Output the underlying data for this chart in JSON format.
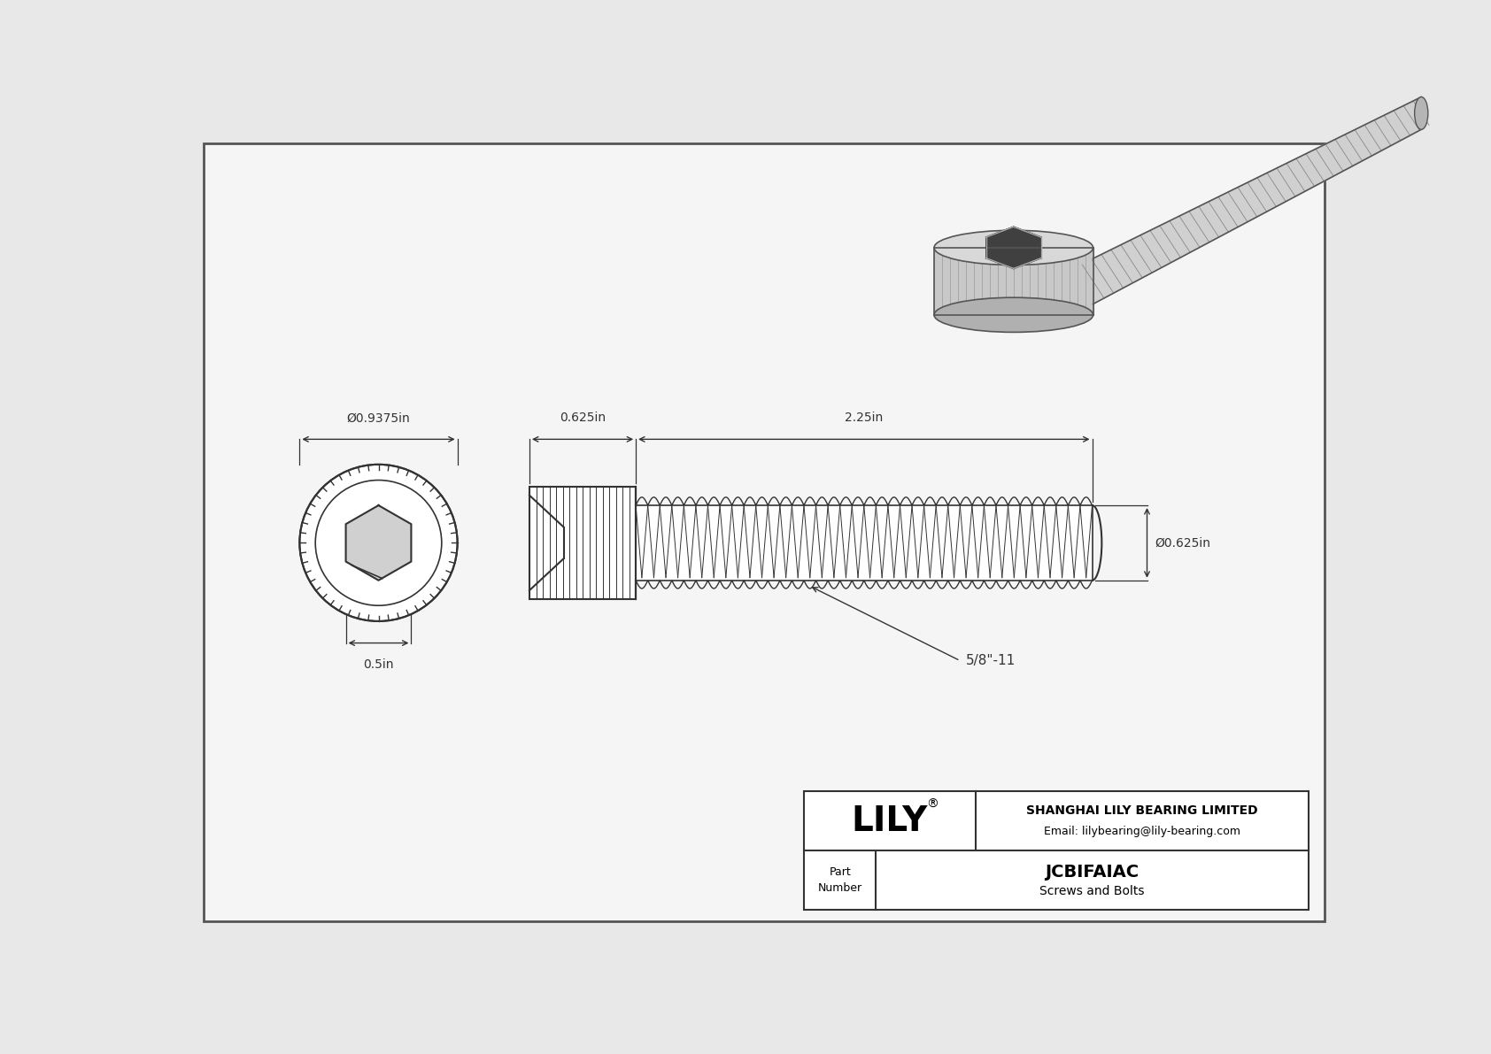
{
  "bg_color": "#e8e8e8",
  "drawing_bg": "#f5f5f5",
  "border_color": "#555555",
  "line_color": "#333333",
  "dim_color": "#333333",
  "title": "JCBIFAIAC",
  "subtitle": "Screws and Bolts",
  "company": "SHANGHAI LILY BEARING LIMITED",
  "email": "Email: lilybearing@lily-bearing.com",
  "part_label": "Part\nNumber",
  "lily_text": "LILY",
  "dim_head_diameter": "Ø0.9375in",
  "dim_socket_width": "0.5in",
  "dim_head_length": "0.625in",
  "dim_shank_length": "2.25in",
  "dim_shank_diameter": "Ø0.625in",
  "dim_thread": "5/8\"-11"
}
